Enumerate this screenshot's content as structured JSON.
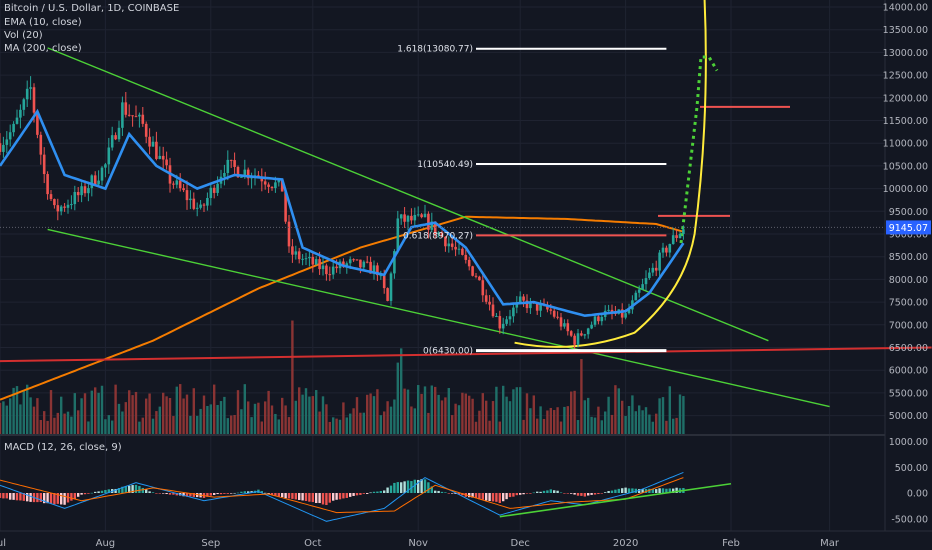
{
  "header": {
    "symbol": "Bitcoin / U.S. Dollar, 1D, COINBASE",
    "ema": "EMA (10, close)",
    "vol": "Vol (20)",
    "ma": "MA (200, close)",
    "macd": "MACD (12, 26, close, 9)"
  },
  "colors": {
    "background": "#131722",
    "grid": "#1f2331",
    "up": "#26a69a",
    "down": "#ef5350",
    "ema": "#2f8ff0",
    "ma": "#f57c00",
    "trend": "#4cd137",
    "support": "#d32f2f",
    "curve": "#ffeb3b",
    "fib": "#ffffff",
    "price_tag": "#2962ff"
  },
  "chart_data": [
    {
      "type": "candlestick",
      "title": "Bitcoin / U.S. Dollar, 1D, COINBASE",
      "ylim": [
        4500,
        14000
      ],
      "y_ticks": [
        "14000.00",
        "13500.00",
        "13000.00",
        "12500.00",
        "12000.00",
        "11500.00",
        "11000.00",
        "10500.00",
        "10000.00",
        "9500.00",
        "9000.00",
        "8500.00",
        "8000.00",
        "7500.00",
        "7000.00",
        "6500.00",
        "6000.00",
        "5500.00",
        "5000.00"
      ],
      "x_ticks": [
        "Jul",
        "Aug",
        "Sep",
        "Oct",
        "Nov",
        "Dec",
        "2020",
        "Feb",
        "Mar"
      ],
      "last_price": "9145.07",
      "price_keypoints": [
        {
          "date": "2019-07-01",
          "close": 11000
        },
        {
          "date": "2019-07-05",
          "close": 11300
        },
        {
          "date": "2019-07-10",
          "close": 12200
        },
        {
          "date": "2019-07-14",
          "close": 10300
        },
        {
          "date": "2019-07-17",
          "close": 9500
        },
        {
          "date": "2019-07-25",
          "close": 9900
        },
        {
          "date": "2019-08-01",
          "close": 10500
        },
        {
          "date": "2019-08-06",
          "close": 11800
        },
        {
          "date": "2019-08-12",
          "close": 11400
        },
        {
          "date": "2019-08-20",
          "close": 10200
        },
        {
          "date": "2019-08-29",
          "close": 9500
        },
        {
          "date": "2019-09-05",
          "close": 10500
        },
        {
          "date": "2019-09-15",
          "close": 10300
        },
        {
          "date": "2019-09-22",
          "close": 10000
        },
        {
          "date": "2019-09-24",
          "close": 8600
        },
        {
          "date": "2019-10-05",
          "close": 8200
        },
        {
          "date": "2019-10-12",
          "close": 8350
        },
        {
          "date": "2019-10-20",
          "close": 8200
        },
        {
          "date": "2019-10-23",
          "close": 7500
        },
        {
          "date": "2019-10-26",
          "close": 9300
        },
        {
          "date": "2019-11-03",
          "close": 9300
        },
        {
          "date": "2019-11-10",
          "close": 8800
        },
        {
          "date": "2019-11-18",
          "close": 8100
        },
        {
          "date": "2019-11-25",
          "close": 7000
        },
        {
          "date": "2019-12-01",
          "close": 7500
        },
        {
          "date": "2019-12-10",
          "close": 7300
        },
        {
          "date": "2019-12-17",
          "close": 6650
        },
        {
          "date": "2019-12-25",
          "close": 7250
        },
        {
          "date": "2020-01-01",
          "close": 7200
        },
        {
          "date": "2020-01-08",
          "close": 8100
        },
        {
          "date": "2020-01-14",
          "close": 8800
        },
        {
          "date": "2020-01-18",
          "close": 9145
        }
      ],
      "ema_keypoints": [
        {
          "date": "2019-07-01",
          "value": 10500
        },
        {
          "date": "2019-07-12",
          "value": 11700
        },
        {
          "date": "2019-07-20",
          "value": 10300
        },
        {
          "date": "2019-08-01",
          "value": 10000
        },
        {
          "date": "2019-08-08",
          "value": 11200
        },
        {
          "date": "2019-08-16",
          "value": 10500
        },
        {
          "date": "2019-08-28",
          "value": 10000
        },
        {
          "date": "2019-09-08",
          "value": 10300
        },
        {
          "date": "2019-09-22",
          "value": 10200
        },
        {
          "date": "2019-09-28",
          "value": 8700
        },
        {
          "date": "2019-10-10",
          "value": 8300
        },
        {
          "date": "2019-10-22",
          "value": 8100
        },
        {
          "date": "2019-10-30",
          "value": 9150
        },
        {
          "date": "2019-11-06",
          "value": 9250
        },
        {
          "date": "2019-11-15",
          "value": 8700
        },
        {
          "date": "2019-11-26",
          "value": 7450
        },
        {
          "date": "2019-12-05",
          "value": 7500
        },
        {
          "date": "2019-12-20",
          "value": 7200
        },
        {
          "date": "2020-01-01",
          "value": 7300
        },
        {
          "date": "2020-01-08",
          "value": 7700
        },
        {
          "date": "2020-01-18",
          "value": 8800
        }
      ],
      "ma_keypoints": [
        {
          "date": "2019-07-01",
          "value": 5350
        },
        {
          "date": "2019-08-15",
          "value": 6650
        },
        {
          "date": "2019-09-15",
          "value": 7800
        },
        {
          "date": "2019-10-15",
          "value": 8700
        },
        {
          "date": "2019-11-15",
          "value": 9380
        },
        {
          "date": "2019-12-15",
          "value": 9330
        },
        {
          "date": "2020-01-10",
          "value": 9220
        },
        {
          "date": "2020-01-18",
          "value": 9050
        }
      ],
      "fib_levels": [
        {
          "label": "1.618(13080.77)",
          "price": 13080.77
        },
        {
          "label": "1(10540.49)",
          "price": 10540.49
        },
        {
          "label": "0.618(8970.27)",
          "price": 8970.27
        },
        {
          "label": "0(6430.00)",
          "price": 6430.0
        }
      ],
      "horizontal_levels": [
        {
          "price": 9400,
          "color": "#ef5350"
        },
        {
          "price": 11800,
          "color": "#ef5350"
        }
      ],
      "trendlines": [
        {
          "from": {
            "date": "2019-07-15",
            "price": 13100
          },
          "to": {
            "date": "2020-02-12",
            "price": 6650
          }
        },
        {
          "from": {
            "date": "2019-07-15",
            "price": 9100
          },
          "to": {
            "date": "2020-03-01",
            "price": 5200
          }
        },
        {
          "from": {
            "date": "2019-06-30",
            "price": 6200
          },
          "to": {
            "date": "2020-03-31",
            "price": 6500
          }
        }
      ]
    },
    {
      "type": "bar",
      "title": "Vol (20)",
      "note": "volume bars, no printed values"
    },
    {
      "type": "line",
      "title": "MACD (12, 26, close, 9)",
      "ylim": [
        -700,
        1150
      ],
      "y_ticks": [
        "1000.00",
        "500.00",
        "0.00",
        "-500.00"
      ],
      "macd_keypoints": [
        {
          "date": "2019-07-01",
          "value": 150
        },
        {
          "date": "2019-07-20",
          "value": -300
        },
        {
          "date": "2019-08-10",
          "value": 200
        },
        {
          "date": "2019-08-30",
          "value": -150
        },
        {
          "date": "2019-09-15",
          "value": 30
        },
        {
          "date": "2019-10-05",
          "value": -550
        },
        {
          "date": "2019-10-22",
          "value": -300
        },
        {
          "date": "2019-11-03",
          "value": 300
        },
        {
          "date": "2019-11-25",
          "value": -430
        },
        {
          "date": "2019-12-10",
          "value": -150
        },
        {
          "date": "2019-12-20",
          "value": -230
        },
        {
          "date": "2020-01-05",
          "value": 50
        },
        {
          "date": "2020-01-18",
          "value": 400
        }
      ],
      "signal_keypoints": [
        {
          "date": "2019-07-01",
          "value": 250
        },
        {
          "date": "2019-07-25",
          "value": -150
        },
        {
          "date": "2019-08-15",
          "value": 100
        },
        {
          "date": "2019-09-02",
          "value": -80
        },
        {
          "date": "2019-09-18",
          "value": -20
        },
        {
          "date": "2019-10-08",
          "value": -380
        },
        {
          "date": "2019-10-25",
          "value": -350
        },
        {
          "date": "2019-11-06",
          "value": 150
        },
        {
          "date": "2019-11-28",
          "value": -300
        },
        {
          "date": "2019-12-15",
          "value": -180
        },
        {
          "date": "2020-01-01",
          "value": -120
        },
        {
          "date": "2020-01-18",
          "value": 300
        }
      ],
      "trendline": {
        "from": {
          "date": "2019-11-25",
          "value": -460
        },
        "to": {
          "date": "2020-02-01",
          "value": 180
        }
      }
    }
  ]
}
